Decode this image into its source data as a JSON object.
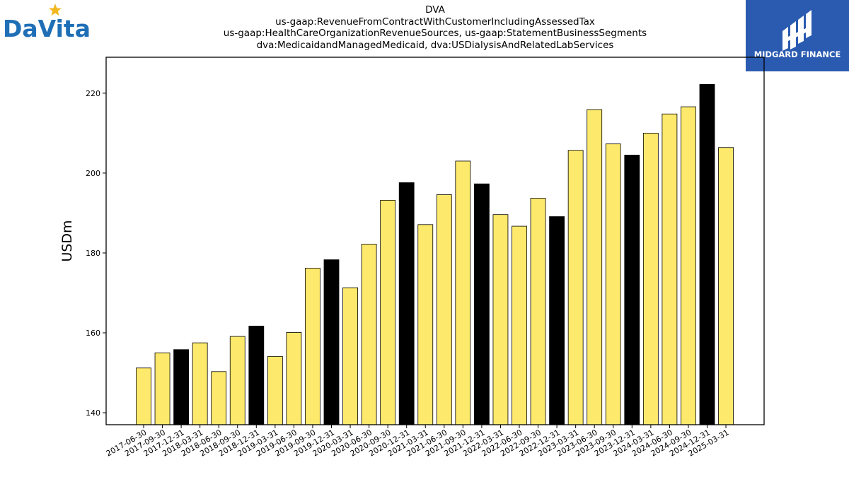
{
  "branding": {
    "company_logo_text": "DaVita",
    "publisher_logo_text": "MIDGARD FINANCE"
  },
  "chart_data": {
    "type": "bar",
    "title_lines": [
      "DVA",
      "us-gaap:RevenueFromContractWithCustomerIncludingAssessedTax",
      "us-gaap:HealthCareOrganizationRevenueSources, us-gaap:StatementBusinessSegments",
      "dva:MedicaidandManagedMedicaid, dva:USDialysisAndRelatedLabServices"
    ],
    "ylabel": "USDm",
    "xlabel": "",
    "ylim": [
      137,
      229
    ],
    "yticks": [
      140,
      160,
      180,
      200,
      220
    ],
    "grid": false,
    "colors": {
      "quarter": "#fde96c",
      "year_end": "#000000",
      "edge": "#000000"
    },
    "categories": [
      "2017-06-30",
      "2017-09-30",
      "2017-12-31",
      "2018-03-31",
      "2018-06-30",
      "2018-09-30",
      "2018-12-31",
      "2019-03-31",
      "2019-06-30",
      "2019-09-30",
      "2019-12-31",
      "2020-03-31",
      "2020-06-30",
      "2020-09-30",
      "2020-12-31",
      "2021-03-31",
      "2021-06-30",
      "2021-09-30",
      "2021-12-31",
      "2022-03-31",
      "2022-06-30",
      "2022-09-30",
      "2022-12-31",
      "2023-03-31",
      "2023-06-30",
      "2023-09-30",
      "2023-12-31",
      "2024-03-31",
      "2024-06-30",
      "2024-09-30",
      "2024-12-31",
      "2025-03-31"
    ],
    "values": [
      151.2,
      155.0,
      155.8,
      157.5,
      150.3,
      159.1,
      161.7,
      154.1,
      160.1,
      176.2,
      178.3,
      171.3,
      182.2,
      193.2,
      197.6,
      187.1,
      194.6,
      203.0,
      197.3,
      189.6,
      186.7,
      193.7,
      189.1,
      205.7,
      215.9,
      207.3,
      204.5,
      210.0,
      214.8,
      216.6,
      222.2,
      206.4
    ],
    "year_end": [
      false,
      false,
      true,
      false,
      false,
      false,
      true,
      false,
      false,
      false,
      true,
      false,
      false,
      false,
      true,
      false,
      false,
      false,
      true,
      false,
      false,
      false,
      true,
      false,
      false,
      false,
      true,
      false,
      false,
      false,
      true,
      false
    ]
  }
}
